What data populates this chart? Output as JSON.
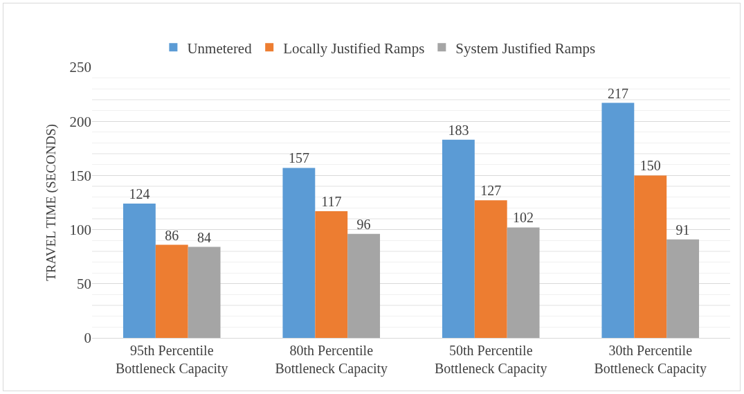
{
  "chart_data": {
    "type": "bar",
    "categories": [
      "95th Percentile Bottleneck Capacity",
      "80th Percentile Bottleneck Capacity",
      "50th Percentile Bottleneck Capacity",
      "30th Percentile Bottleneck Capacity"
    ],
    "series": [
      {
        "name": "Unmetered",
        "color": "#5b9bd5",
        "values": [
          124,
          157,
          183,
          217
        ]
      },
      {
        "name": "Locally Justified Ramps",
        "color": "#ed7d31",
        "values": [
          86,
          117,
          127,
          150
        ]
      },
      {
        "name": "System Justified Ramps",
        "color": "#a5a5a5",
        "values": [
          84,
          96,
          102,
          91
        ]
      }
    ],
    "ylabel": "TRAVEL TIME (SECONDS)",
    "ylim": [
      0,
      250
    ],
    "yticks": [
      0,
      50,
      100,
      150,
      200,
      250
    ],
    "grid": "y",
    "legend": "top",
    "data_labels": true
  }
}
